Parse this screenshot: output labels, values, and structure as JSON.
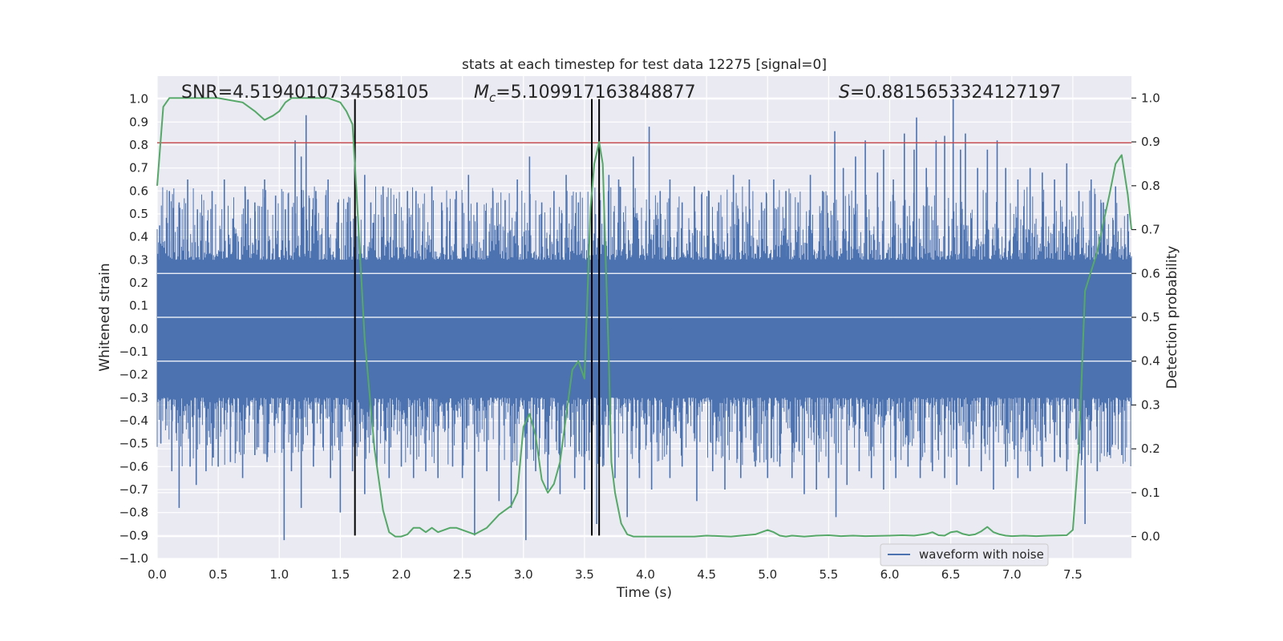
{
  "chart_data": {
    "type": "line",
    "title": "stats at each timestep for test data 12275 [signal=0]",
    "xlabel": "Time (s)",
    "ylabel": "Whitened strain",
    "y2label": "Detection probability",
    "xlim": [
      0.0,
      7.98
    ],
    "ylim": [
      -1.0,
      1.1
    ],
    "y2lim": [
      -0.05,
      1.05
    ],
    "xticks": [
      0.0,
      0.5,
      1.0,
      1.5,
      2.0,
      2.5,
      3.0,
      3.5,
      4.0,
      4.5,
      5.0,
      5.5,
      6.0,
      6.5,
      7.0,
      7.5
    ],
    "xtick_labels": [
      "0.0",
      "0.5",
      "1.0",
      "1.5",
      "2.0",
      "2.5",
      "3.0",
      "3.5",
      "4.0",
      "4.5",
      "5.0",
      "5.5",
      "6.0",
      "6.5",
      "7.0",
      "7.5"
    ],
    "yticks": [
      -1.0,
      -0.9,
      -0.8,
      -0.7,
      -0.6,
      -0.5,
      -0.4,
      -0.3,
      -0.2,
      -0.1,
      0.0,
      0.1,
      0.2,
      0.3,
      0.4,
      0.5,
      0.6,
      0.7,
      0.8,
      0.9,
      1.0
    ],
    "ytick_labels": [
      "−1.0",
      "−0.9",
      "−0.8",
      "−0.7",
      "−0.6",
      "−0.5",
      "−0.4",
      "−0.3",
      "−0.2",
      "−0.1",
      "0.0",
      "0.1",
      "0.2",
      "0.3",
      "0.4",
      "0.5",
      "0.6",
      "0.7",
      "0.8",
      "0.9",
      "1.0"
    ],
    "y2ticks": [
      0.0,
      0.1,
      0.2,
      0.3,
      0.4,
      0.5,
      0.6,
      0.7,
      0.8,
      0.9,
      1.0
    ],
    "y2tick_labels": [
      "0.0",
      "0.1",
      "0.2",
      "0.3",
      "0.4",
      "0.5",
      "0.6",
      "0.7",
      "0.8",
      "0.9",
      "1.0"
    ],
    "grid": true,
    "legend_placement": "lower-right",
    "annotations": {
      "snr": "SNR=4.5194010734558105",
      "mc_symbol": "M",
      "mc_sub": "c",
      "mc_value": "=5.109917163848877",
      "s_symbol": "S",
      "s_value": "=0.8815653324127197"
    },
    "colors": {
      "background": "#eaeaf2",
      "grid": "#ffffff",
      "strain": "#4c72b0",
      "probability": "#55a868",
      "threshold": "#c44e52",
      "marker": "#000000",
      "text": "#262626"
    },
    "series": [
      {
        "name": "waveform with noise",
        "axis": "left",
        "kind": "noise-envelope",
        "dense_band": [
          -0.3,
          0.3
        ],
        "peaks_positive": [
          [
            0.02,
            0.45
          ],
          [
            0.1,
            0.6
          ],
          [
            0.18,
            0.55
          ],
          [
            0.25,
            0.65
          ],
          [
            0.33,
            0.52
          ],
          [
            0.45,
            0.6
          ],
          [
            0.55,
            0.65
          ],
          [
            0.62,
            0.48
          ],
          [
            0.72,
            0.62
          ],
          [
            0.8,
            0.55
          ],
          [
            0.88,
            0.65
          ],
          [
            0.97,
            0.58
          ],
          [
            1.05,
            0.52
          ],
          [
            1.13,
            0.82
          ],
          [
            1.18,
            0.75
          ],
          [
            1.22,
            0.93
          ],
          [
            1.3,
            0.6
          ],
          [
            1.4,
            0.65
          ],
          [
            1.48,
            0.55
          ],
          [
            1.56,
            0.55
          ],
          [
            1.62,
            0.8
          ],
          [
            1.7,
            0.67
          ],
          [
            1.75,
            0.55
          ],
          [
            1.85,
            0.62
          ],
          [
            1.95,
            0.5
          ],
          [
            2.05,
            0.6
          ],
          [
            2.12,
            0.6
          ],
          [
            2.25,
            0.62
          ],
          [
            2.33,
            0.55
          ],
          [
            2.45,
            0.6
          ],
          [
            2.55,
            0.67
          ],
          [
            2.62,
            0.55
          ],
          [
            2.75,
            0.6
          ],
          [
            2.85,
            0.56
          ],
          [
            2.95,
            0.65
          ],
          [
            3.05,
            0.75
          ],
          [
            3.15,
            0.55
          ],
          [
            3.25,
            0.6
          ],
          [
            3.35,
            0.67
          ],
          [
            3.45,
            0.55
          ],
          [
            3.56,
            0.78
          ],
          [
            3.62,
            0.8
          ],
          [
            3.7,
            0.67
          ],
          [
            3.78,
            0.65
          ],
          [
            3.9,
            0.75
          ],
          [
            4.03,
            0.88
          ],
          [
            4.12,
            0.6
          ],
          [
            4.2,
            0.65
          ],
          [
            4.3,
            0.55
          ],
          [
            4.4,
            0.62
          ],
          [
            4.52,
            0.6
          ],
          [
            4.6,
            0.55
          ],
          [
            4.72,
            0.67
          ],
          [
            4.85,
            0.65
          ],
          [
            4.95,
            0.55
          ],
          [
            5.05,
            0.65
          ],
          [
            5.15,
            0.6
          ],
          [
            5.25,
            0.55
          ],
          [
            5.35,
            0.67
          ],
          [
            5.45,
            0.6
          ],
          [
            5.55,
            0.86
          ],
          [
            5.62,
            0.7
          ],
          [
            5.72,
            0.75
          ],
          [
            5.8,
            0.82
          ],
          [
            5.9,
            0.68
          ],
          [
            5.95,
            0.78
          ],
          [
            6.03,
            0.65
          ],
          [
            6.12,
            0.85
          ],
          [
            6.2,
            0.78
          ],
          [
            6.22,
            0.92
          ],
          [
            6.3,
            0.7
          ],
          [
            6.38,
            0.82
          ],
          [
            6.45,
            0.84
          ],
          [
            6.52,
            1.0
          ],
          [
            6.58,
            0.78
          ],
          [
            6.62,
            0.85
          ],
          [
            6.72,
            0.7
          ],
          [
            6.8,
            0.78
          ],
          [
            6.88,
            0.82
          ],
          [
            6.95,
            0.7
          ],
          [
            7.05,
            0.65
          ],
          [
            7.15,
            0.7
          ],
          [
            7.25,
            0.68
          ],
          [
            7.35,
            0.65
          ],
          [
            7.45,
            0.72
          ],
          [
            7.55,
            0.6
          ],
          [
            7.65,
            0.65
          ],
          [
            7.75,
            0.55
          ],
          [
            7.85,
            0.62
          ],
          [
            7.95,
            0.5
          ]
        ],
        "peaks_negative": [
          [
            0.03,
            -0.5
          ],
          [
            0.12,
            -0.62
          ],
          [
            0.18,
            -0.78
          ],
          [
            0.27,
            -0.6
          ],
          [
            0.32,
            -0.68
          ],
          [
            0.4,
            -0.62
          ],
          [
            0.5,
            -0.6
          ],
          [
            0.6,
            -0.58
          ],
          [
            0.7,
            -0.65
          ],
          [
            0.8,
            -0.55
          ],
          [
            0.9,
            -0.58
          ],
          [
            1.04,
            -0.92
          ],
          [
            1.1,
            -0.62
          ],
          [
            1.18,
            -0.78
          ],
          [
            1.28,
            -0.6
          ],
          [
            1.42,
            -0.65
          ],
          [
            1.5,
            -0.8
          ],
          [
            1.6,
            -0.62
          ],
          [
            1.7,
            -0.72
          ],
          [
            1.8,
            -0.6
          ],
          [
            1.9,
            -0.65
          ],
          [
            2.0,
            -0.6
          ],
          [
            2.1,
            -0.65
          ],
          [
            2.2,
            -0.62
          ],
          [
            2.3,
            -0.65
          ],
          [
            2.42,
            -0.6
          ],
          [
            2.5,
            -0.65
          ],
          [
            2.6,
            -0.9
          ],
          [
            2.7,
            -0.62
          ],
          [
            2.8,
            -0.75
          ],
          [
            2.9,
            -0.78
          ],
          [
            3.02,
            -0.92
          ],
          [
            3.1,
            -0.62
          ],
          [
            3.2,
            -0.7
          ],
          [
            3.3,
            -0.72
          ],
          [
            3.42,
            -0.65
          ],
          [
            3.5,
            -0.7
          ],
          [
            3.6,
            -0.85
          ],
          [
            3.65,
            -0.6
          ],
          [
            3.75,
            -0.65
          ],
          [
            3.85,
            -0.82
          ],
          [
            3.95,
            -0.65
          ],
          [
            4.05,
            -0.7
          ],
          [
            4.2,
            -0.65
          ],
          [
            4.3,
            -0.6
          ],
          [
            4.42,
            -0.75
          ],
          [
            4.55,
            -0.62
          ],
          [
            4.65,
            -0.7
          ],
          [
            4.78,
            -0.65
          ],
          [
            4.9,
            -0.6
          ],
          [
            5.0,
            -0.65
          ],
          [
            5.1,
            -0.6
          ],
          [
            5.2,
            -0.65
          ],
          [
            5.3,
            -0.72
          ],
          [
            5.4,
            -0.7
          ],
          [
            5.5,
            -0.65
          ],
          [
            5.56,
            -0.82
          ],
          [
            5.65,
            -0.68
          ],
          [
            5.75,
            -0.62
          ],
          [
            5.85,
            -0.65
          ],
          [
            5.95,
            -0.7
          ],
          [
            6.05,
            -0.65
          ],
          [
            6.15,
            -0.6
          ],
          [
            6.25,
            -0.65
          ],
          [
            6.35,
            -0.62
          ],
          [
            6.45,
            -0.65
          ],
          [
            6.55,
            -0.68
          ],
          [
            6.65,
            -0.6
          ],
          [
            6.75,
            -0.62
          ],
          [
            6.85,
            -0.7
          ],
          [
            6.95,
            -0.6
          ],
          [
            7.05,
            -0.65
          ],
          [
            7.15,
            -0.62
          ],
          [
            7.25,
            -0.6
          ],
          [
            7.35,
            -0.58
          ],
          [
            7.45,
            -0.62
          ],
          [
            7.6,
            -0.85
          ],
          [
            7.7,
            -0.62
          ],
          [
            7.8,
            -0.55
          ],
          [
            7.9,
            -0.55
          ]
        ]
      },
      {
        "name": "",
        "axis": "right",
        "kind": "line",
        "x": [
          0.0,
          0.05,
          0.1,
          0.2,
          0.3,
          0.5,
          0.7,
          0.8,
          0.88,
          0.95,
          1.0,
          1.05,
          1.1,
          1.2,
          1.3,
          1.4,
          1.5,
          1.55,
          1.6,
          1.63,
          1.7,
          1.78,
          1.85,
          1.9,
          1.95,
          2.0,
          2.05,
          2.1,
          2.15,
          2.2,
          2.25,
          2.3,
          2.35,
          2.4,
          2.45,
          2.5,
          2.55,
          2.6,
          2.7,
          2.8,
          2.9,
          2.95,
          3.0,
          3.05,
          3.1,
          3.15,
          3.2,
          3.25,
          3.3,
          3.4,
          3.45,
          3.5,
          3.55,
          3.58,
          3.62,
          3.65,
          3.7,
          3.72,
          3.75,
          3.8,
          3.85,
          3.9,
          4.0,
          4.2,
          4.4,
          4.5,
          4.7,
          4.9,
          4.95,
          5.0,
          5.05,
          5.1,
          5.15,
          5.2,
          5.3,
          5.4,
          5.5,
          5.6,
          5.7,
          5.8,
          6.0,
          6.1,
          6.2,
          6.3,
          6.35,
          6.4,
          6.45,
          6.5,
          6.55,
          6.6,
          6.65,
          6.7,
          6.75,
          6.8,
          6.85,
          6.9,
          6.95,
          7.0,
          7.1,
          7.2,
          7.3,
          7.45,
          7.5,
          7.55,
          7.6,
          7.7,
          7.8,
          7.85,
          7.9,
          7.95,
          7.98
        ],
        "values": [
          0.8,
          0.98,
          1.0,
          1.0,
          1.0,
          1.0,
          0.99,
          0.97,
          0.95,
          0.96,
          0.97,
          0.99,
          1.0,
          1.0,
          1.0,
          1.0,
          0.99,
          0.97,
          0.94,
          0.8,
          0.45,
          0.2,
          0.06,
          0.01,
          0.0,
          0.0,
          0.005,
          0.02,
          0.02,
          0.01,
          0.02,
          0.01,
          0.015,
          0.02,
          0.02,
          0.015,
          0.01,
          0.005,
          0.02,
          0.05,
          0.07,
          0.1,
          0.25,
          0.28,
          0.23,
          0.13,
          0.1,
          0.12,
          0.17,
          0.38,
          0.4,
          0.36,
          0.75,
          0.85,
          0.9,
          0.85,
          0.4,
          0.17,
          0.1,
          0.03,
          0.005,
          0.0,
          0.0,
          0.0,
          0.0,
          0.002,
          0.0,
          0.005,
          0.01,
          0.015,
          0.01,
          0.002,
          0.0,
          0.002,
          0.0,
          0.002,
          0.003,
          0.001,
          0.002,
          0.001,
          0.002,
          0.003,
          0.002,
          0.006,
          0.01,
          0.003,
          0.002,
          0.01,
          0.012,
          0.006,
          0.003,
          0.005,
          0.012,
          0.022,
          0.01,
          0.005,
          0.002,
          0.001,
          0.002,
          0.001,
          0.002,
          0.003,
          0.015,
          0.2,
          0.56,
          0.65,
          0.78,
          0.85,
          0.87,
          0.78,
          0.7
        ]
      }
    ],
    "threshold_line": {
      "axis": "left",
      "y": 0.81
    },
    "vertical_markers": [
      {
        "x": 1.62,
        "y_from": -0.9,
        "y_to": 1.0
      },
      {
        "x": 3.56,
        "y_from": -0.9,
        "y_to": 1.0
      },
      {
        "x": 3.62,
        "y_from": -0.9,
        "y_to": 1.0
      }
    ]
  }
}
